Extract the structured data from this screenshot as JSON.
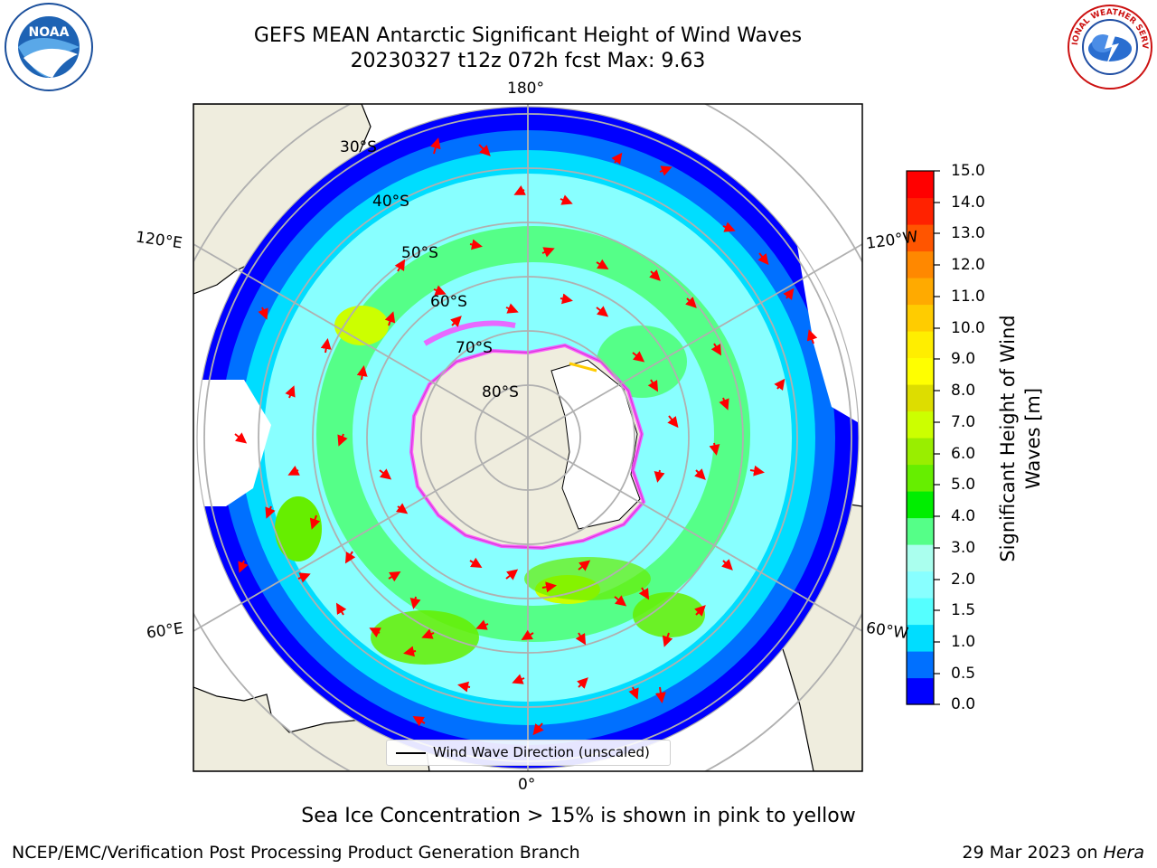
{
  "title": {
    "line1": "GEFS MEAN Antarctic Significant Height of Wind Waves",
    "line2": "20230327 t12z 072h fcst   Max: 9.63"
  },
  "logos": {
    "left": {
      "icon": "noaa-logo-icon",
      "text": "NOAA"
    },
    "right": {
      "icon": "nws-logo-icon",
      "text": "NATIONAL WEATHER SERVICE"
    }
  },
  "map": {
    "longitude_labels": {
      "top": "180°",
      "bottom": "0°",
      "upper_left": "120°E",
      "lower_left": "60°E",
      "upper_right": "120°W",
      "lower_right": "60°W"
    },
    "latitude_labels": [
      "30°S",
      "40°S",
      "50°S",
      "60°S",
      "70°S",
      "80°S"
    ],
    "legend_label": "Wind Wave Direction (unscaled)",
    "colors": {
      "land": "#efedde",
      "ocean_low": "#0000ff",
      "ice_edge": "#ff44ff",
      "grid": "#b0b0b0"
    }
  },
  "colorbar": {
    "label": "Significant Height of Wind Waves [m]",
    "label_line1": "Significant Height of Wind",
    "label_line2": "Waves [m]",
    "ticks": [
      "15.0",
      "14.0",
      "13.0",
      "12.0",
      "11.0",
      "10.0",
      "9.0",
      "8.0",
      "7.0",
      "6.0",
      "5.0",
      "4.0",
      "3.0",
      "2.0",
      "1.5",
      "1.0",
      "0.5",
      "0.0"
    ],
    "colors": [
      "#0000ff",
      "#0070ff",
      "#00ddff",
      "#55ffff",
      "#88ffff",
      "#aaffee",
      "#55ff88",
      "#00ee00",
      "#66ee00",
      "#99ee00",
      "#ccff00",
      "#dddd00",
      "#ffff00",
      "#ffee00",
      "#ffcc00",
      "#ffaa00",
      "#ff8800",
      "#ff5500",
      "#ff2200",
      "#ff0000"
    ]
  },
  "note": "Sea Ice Concentration > 15% is shown in pink to yellow",
  "footer": {
    "left": "NCEP/EMC/Verification Post Processing Product Generation Branch",
    "right_date": "29 Mar 2023 on ",
    "right_host": "Hera"
  }
}
